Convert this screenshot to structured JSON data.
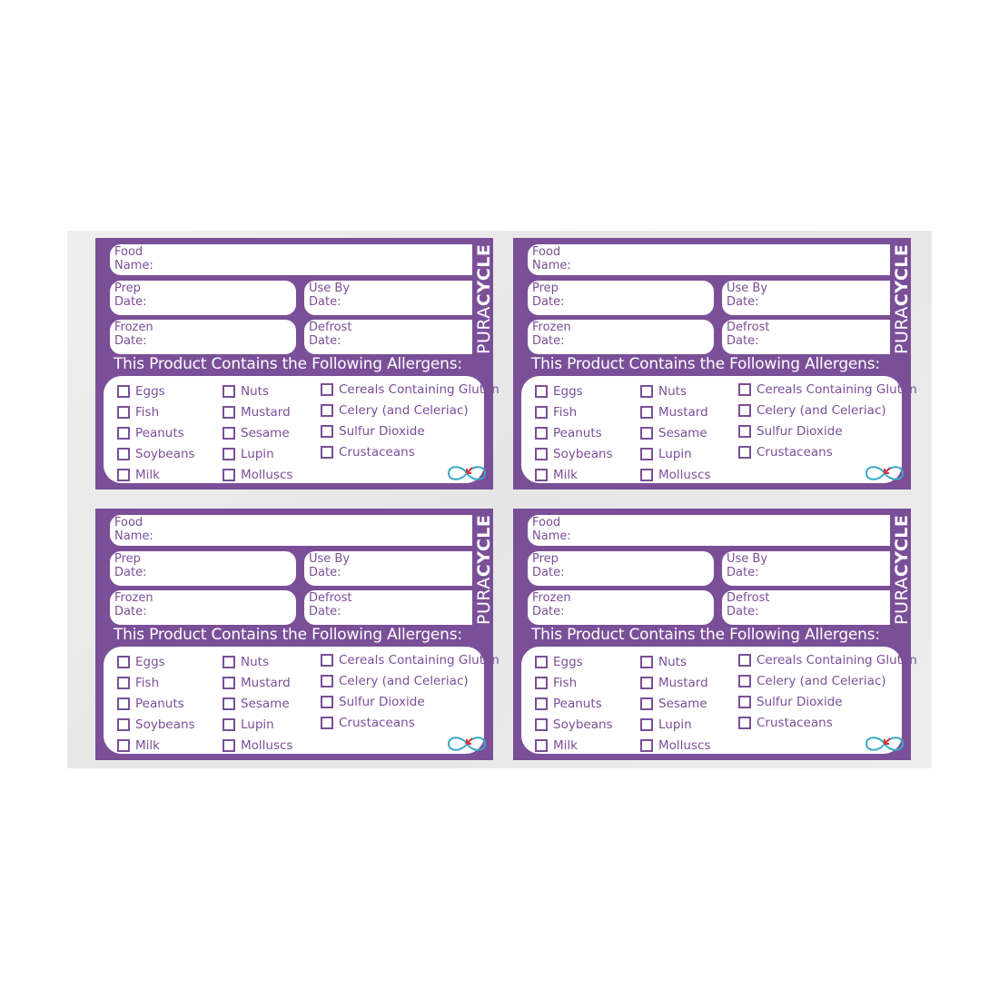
{
  "label": {
    "food_name": [
      "Food",
      "Name:"
    ],
    "prep_date": [
      "Prep",
      "Date:"
    ],
    "use_by_date": [
      "Use By",
      "Date:"
    ],
    "frozen_date": [
      "Frozen",
      "Date:"
    ],
    "defrost_date": [
      "Defrost",
      "Date:"
    ],
    "brand": {
      "light": "PURA",
      "bold": "CYCLE"
    },
    "allergens_title": "This Product Contains the Following Allergens:",
    "allergens": [
      [
        "Eggs",
        "Fish",
        "Peanuts",
        "Soybeans",
        "Milk"
      ],
      [
        "Nuts",
        "Mustard",
        "Sesame",
        "Lupin",
        "Molluscs"
      ],
      [
        "Cereals Containing Gluten",
        "Celery (and Celeriac)",
        "Sulfur Dioxide",
        "Crustaceans"
      ]
    ],
    "logo_icon": "infinity-recycle-icon"
  },
  "colors": {
    "label_purple": "#7a4f98",
    "logo_teal": "#3aaac4",
    "logo_red": "#d9323c",
    "sheet_bg": "#ebebeb"
  }
}
